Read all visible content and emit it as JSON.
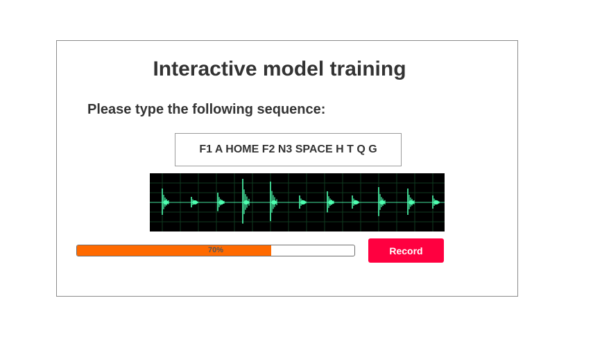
{
  "title": "Interactive model training",
  "prompt": "Please type the following sequence:",
  "sequence": "F1 A HOME F2 N3 SPACE H T Q G",
  "progress": {
    "percent": 70,
    "label": "70%",
    "fill_color": "#ff6a00"
  },
  "record_button": {
    "label": "Record",
    "color": "#ff0040"
  },
  "waveform": {
    "background": "#000000",
    "trace_color": "#4dffb0",
    "grid_color": "#0f3a1f"
  }
}
